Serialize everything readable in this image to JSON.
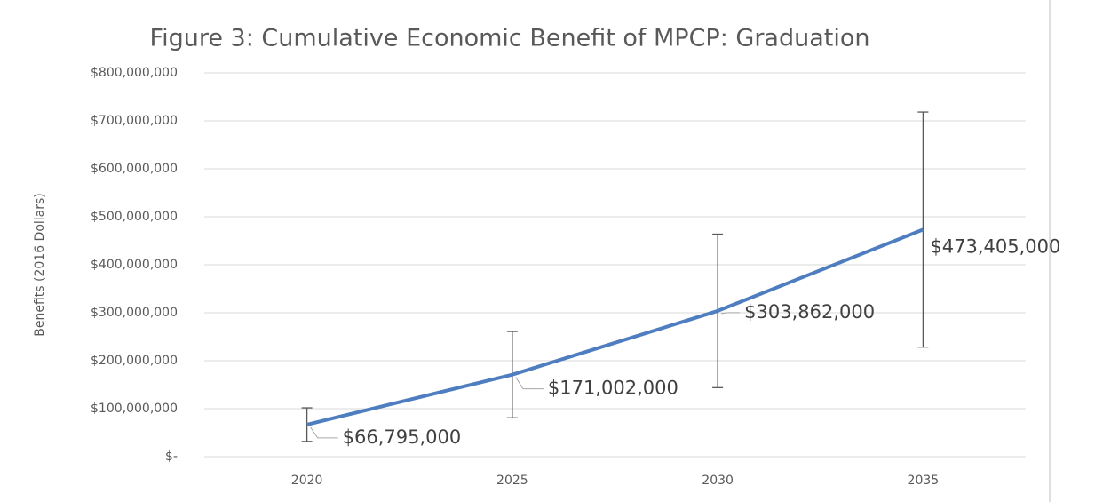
{
  "chart_data": {
    "type": "line",
    "title": "Figure 3: Cumulative Economic Benefit of MPCP: Graduation",
    "ylabel": "Benefits  (2016 Dollars)",
    "categories": [
      "2020",
      "2025",
      "2030",
      "2035"
    ],
    "series": [
      {
        "name": "Benefits",
        "color": "#4e7ebf",
        "values": [
          66795000,
          171002000,
          303862000,
          473405000
        ],
        "value_labels": [
          "$66,795,000",
          "$171,002,000",
          "$303,862,000",
          "$473,405,000"
        ],
        "errors": [
          35000000,
          90000000,
          160000000,
          245000000
        ]
      }
    ],
    "ylim": [
      0,
      800000000
    ],
    "yticks": [
      {
        "value": 0,
        "label": "$-"
      },
      {
        "value": 100000000,
        "label": "$100,000,000"
      },
      {
        "value": 200000000,
        "label": "$200,000,000"
      },
      {
        "value": 300000000,
        "label": "$300,000,000"
      },
      {
        "value": 400000000,
        "label": "$400,000,000"
      },
      {
        "value": 500000000,
        "label": "$500,000,000"
      },
      {
        "value": 600000000,
        "label": "$600,000,000"
      },
      {
        "value": 700000000,
        "label": "$700,000,000"
      },
      {
        "value": 800000000,
        "label": "$800,000,000"
      }
    ],
    "grid": true
  }
}
